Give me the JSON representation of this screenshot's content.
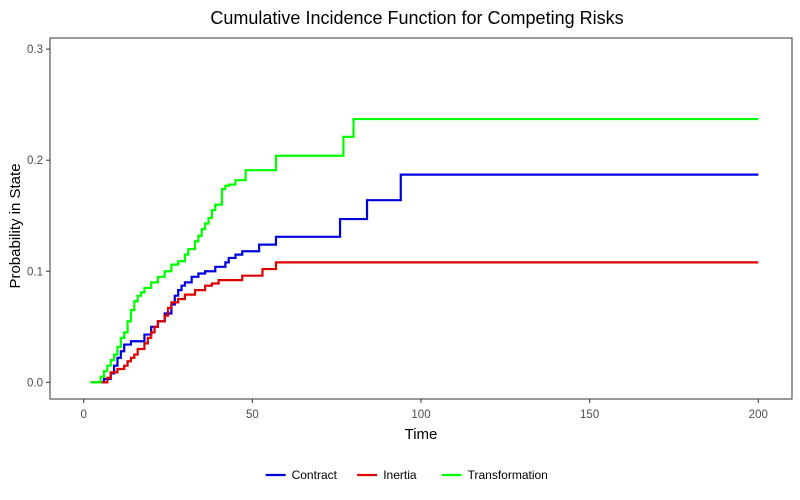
{
  "chart_data": {
    "type": "line",
    "step": true,
    "title": "Cumulative Incidence Function for Competing Risks",
    "xlabel": "Time",
    "ylabel": "Probability in State",
    "xlim": [
      -10,
      210
    ],
    "ylim": [
      -0.015,
      0.31
    ],
    "xticks": [
      0,
      50,
      100,
      150,
      200
    ],
    "xtick_labels": [
      "0",
      "50",
      "100",
      "150",
      "200"
    ],
    "yticks": [
      0.0,
      0.1,
      0.2,
      0.3
    ],
    "ytick_labels": [
      "0.0",
      "0.1",
      "0.2",
      "0.3"
    ],
    "grid": false,
    "legend_position": "bottom",
    "series": [
      {
        "name": "Contract",
        "color": "#0000dd",
        "x": [
          2,
          6,
          8,
          9,
          10,
          11,
          12,
          14,
          18,
          20,
          22,
          24,
          26,
          27,
          28,
          29,
          30,
          32,
          34,
          36,
          39,
          42,
          43,
          45,
          47,
          52,
          57,
          76,
          84,
          94,
          200
        ],
        "y": [
          0,
          0.003,
          0.008,
          0.015,
          0.022,
          0.028,
          0.034,
          0.037,
          0.043,
          0.05,
          0.055,
          0.062,
          0.07,
          0.078,
          0.083,
          0.087,
          0.09,
          0.095,
          0.098,
          0.1,
          0.104,
          0.108,
          0.112,
          0.115,
          0.118,
          0.124,
          0.131,
          0.147,
          0.164,
          0.187,
          0.187
        ]
      },
      {
        "name": "Inertia",
        "color": "#dd0000",
        "x": [
          2,
          7,
          8,
          10,
          12,
          13,
          14,
          15,
          16,
          18,
          19,
          20,
          21,
          22,
          24,
          25,
          26,
          28,
          30,
          33,
          36,
          38,
          40,
          47,
          53,
          57,
          200
        ],
        "y": [
          0,
          0.004,
          0.009,
          0.012,
          0.015,
          0.019,
          0.022,
          0.025,
          0.03,
          0.035,
          0.04,
          0.045,
          0.05,
          0.055,
          0.06,
          0.067,
          0.072,
          0.075,
          0.079,
          0.083,
          0.087,
          0.089,
          0.092,
          0.096,
          0.102,
          0.108,
          0.108
        ]
      },
      {
        "name": "Transformation",
        "color": "#00ff00",
        "x": [
          2,
          5,
          6,
          7,
          8,
          9,
          10,
          11,
          12,
          13,
          14,
          15,
          16,
          17,
          18,
          20,
          22,
          24,
          26,
          28,
          30,
          31,
          33,
          34,
          35,
          36,
          37,
          38,
          39,
          41,
          42,
          43,
          45,
          48,
          57,
          77,
          80,
          200
        ],
        "y": [
          0,
          0.005,
          0.01,
          0.015,
          0.02,
          0.025,
          0.032,
          0.04,
          0.045,
          0.055,
          0.065,
          0.073,
          0.078,
          0.081,
          0.085,
          0.09,
          0.095,
          0.1,
          0.106,
          0.109,
          0.115,
          0.12,
          0.127,
          0.132,
          0.138,
          0.143,
          0.148,
          0.155,
          0.16,
          0.174,
          0.177,
          0.178,
          0.182,
          0.191,
          0.204,
          0.221,
          0.237,
          0.237
        ]
      }
    ]
  }
}
